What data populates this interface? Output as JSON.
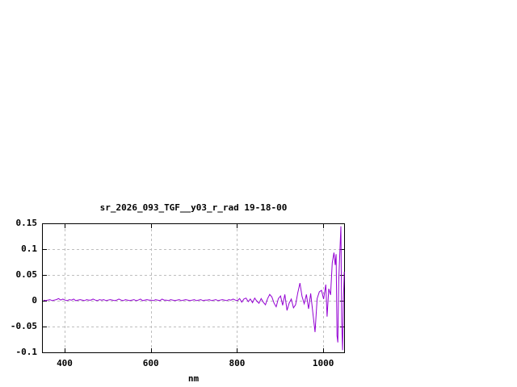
{
  "window": {
    "background": "#ffffff"
  },
  "chart_data": {
    "type": "line",
    "title": "sr_2026_093_TGF__y03_r_rad 19-18-00",
    "xlabel": "nm",
    "ylabel": "",
    "legend": "none",
    "grid": true,
    "x_tick_labels": [
      "400",
      "600",
      "800",
      "1000"
    ],
    "y_tick_labels": [
      "0.15",
      "0.1",
      "0.05",
      "0",
      "-0.05",
      "-0.1"
    ],
    "xlim": [
      347.5,
      1048.5
    ],
    "ylim": [
      -0.1,
      0.15
    ],
    "colors": {
      "line": "#9400d3",
      "grid": "#bebebe",
      "axis": "#000000",
      "text": "#000000",
      "background": "#ffffff"
    },
    "series": [
      {
        "name": "sr_2026_093_TGF__y03_r_rad",
        "x": [
          350,
          355,
          360,
          365,
          370,
          375,
          380,
          385,
          390,
          395,
          400,
          405,
          410,
          415,
          420,
          425,
          430,
          435,
          440,
          445,
          450,
          455,
          460,
          465,
          470,
          475,
          480,
          485,
          490,
          495,
          500,
          505,
          510,
          515,
          520,
          525,
          530,
          535,
          540,
          545,
          550,
          555,
          560,
          565,
          570,
          575,
          580,
          585,
          590,
          595,
          600,
          605,
          610,
          615,
          620,
          625,
          630,
          635,
          640,
          645,
          650,
          655,
          660,
          665,
          670,
          675,
          680,
          685,
          690,
          695,
          700,
          705,
          710,
          715,
          720,
          725,
          730,
          735,
          740,
          745,
          750,
          755,
          760,
          765,
          770,
          775,
          780,
          785,
          790,
          795,
          800,
          805,
          810,
          815,
          820,
          825,
          830,
          835,
          840,
          845,
          850,
          855,
          860,
          865,
          870,
          875,
          880,
          885,
          890,
          895,
          900,
          905,
          910,
          915,
          920,
          925,
          930,
          935,
          940,
          945,
          950,
          955,
          960,
          965,
          970,
          975,
          980,
          985,
          990,
          995,
          1000,
          1005,
          1008,
          1012,
          1016,
          1020,
          1024,
          1027,
          1029,
          1031,
          1033,
          1035,
          1038,
          1040,
          1042,
          1044,
          1046,
          1048
        ],
        "y": [
          0.002,
          0.001,
          0.002,
          0.003,
          0.001,
          0.002,
          0.003,
          0.005,
          0.002,
          0.004,
          0.002,
          0.001,
          0.003,
          0.002,
          0.004,
          0.001,
          0.002,
          0.003,
          0.002,
          0.001,
          0.003,
          0.002,
          0.002,
          0.004,
          0.002,
          0.001,
          0.003,
          0.002,
          0.003,
          0.001,
          0.002,
          0.003,
          0.002,
          0.001,
          0.002,
          0.004,
          0.002,
          0.001,
          0.003,
          0.002,
          0.001,
          0.002,
          0.003,
          0.001,
          0.002,
          0.004,
          0.001,
          0.002,
          0.003,
          0.002,
          0.002,
          0.001,
          0.003,
          0.002,
          0.001,
          0.004,
          0.002,
          0.002,
          0.001,
          0.003,
          0.002,
          0.001,
          0.002,
          0.003,
          0.001,
          0.002,
          0.003,
          0.002,
          0.001,
          0.002,
          0.003,
          0.001,
          0.002,
          0.003,
          0.001,
          0.002,
          0.002,
          0.003,
          0.001,
          0.002,
          0.003,
          0.001,
          0.002,
          0.003,
          0.002,
          0.001,
          0.003,
          0.002,
          0.004,
          0.002,
          0.001,
          0.005,
          -0.002,
          0.004,
          0.006,
          -0.001,
          0.004,
          -0.003,
          0.006,
          0.0,
          -0.004,
          0.005,
          -0.002,
          -0.007,
          0.005,
          0.013,
          0.008,
          -0.004,
          -0.011,
          0.005,
          0.01,
          -0.008,
          0.013,
          -0.018,
          -0.004,
          0.004,
          -0.013,
          -0.007,
          0.016,
          0.035,
          0.009,
          -0.005,
          0.013,
          -0.015,
          0.015,
          -0.023,
          -0.06,
          0.005,
          0.018,
          0.021,
          0.004,
          0.032,
          -0.03,
          0.024,
          0.012,
          0.074,
          0.094,
          0.07,
          0.091,
          -0.067,
          -0.08,
          0.038,
          0.102,
          0.145,
          -0.042,
          -0.095,
          0.008,
          0.057
        ]
      }
    ]
  }
}
